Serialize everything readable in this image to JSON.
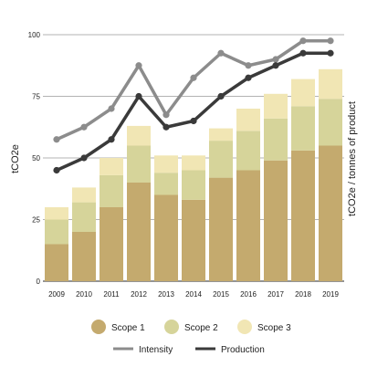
{
  "chart_data": {
    "type": "bar",
    "stacked": true,
    "title": "",
    "xlabel": "",
    "ylabel": "tCO2e",
    "ylabel_right": "tCO2e / tonnes of product",
    "ylim": [
      0,
      100
    ],
    "yticks": [
      0,
      25,
      50,
      75,
      100
    ],
    "grid": true,
    "legend_position": "bottom",
    "categories": [
      "2009",
      "2010",
      "2011",
      "2012",
      "2013",
      "2014",
      "2015",
      "2016",
      "2017",
      "2018",
      "2019"
    ],
    "series": [
      {
        "name": "Scope 1",
        "kind": "bar",
        "color": "#c4aa6e",
        "values": [
          15,
          20,
          30,
          40,
          35,
          33,
          42,
          45,
          49,
          53,
          55
        ]
      },
      {
        "name": "Scope 2",
        "kind": "bar",
        "color": "#d6d49a",
        "values": [
          10,
          12,
          13,
          15,
          9,
          12,
          15,
          16,
          17,
          18,
          19
        ]
      },
      {
        "name": "Scope 3",
        "kind": "bar",
        "color": "#f1e6b4",
        "values": [
          5,
          6,
          7,
          8,
          7,
          6,
          5,
          9,
          10,
          11,
          12
        ]
      },
      {
        "name": "Intensity",
        "kind": "line",
        "color": "#8c8c8c",
        "values": [
          57.5,
          62.5,
          70,
          87.5,
          67.5,
          82.5,
          92.5,
          87.5,
          90,
          97.5,
          97.5
        ]
      },
      {
        "name": "Production",
        "kind": "line",
        "color": "#3a3a3a",
        "values": [
          45,
          50,
          57.5,
          75,
          62.5,
          65,
          75,
          82.5,
          87.5,
          92.5,
          92.5
        ]
      }
    ]
  }
}
